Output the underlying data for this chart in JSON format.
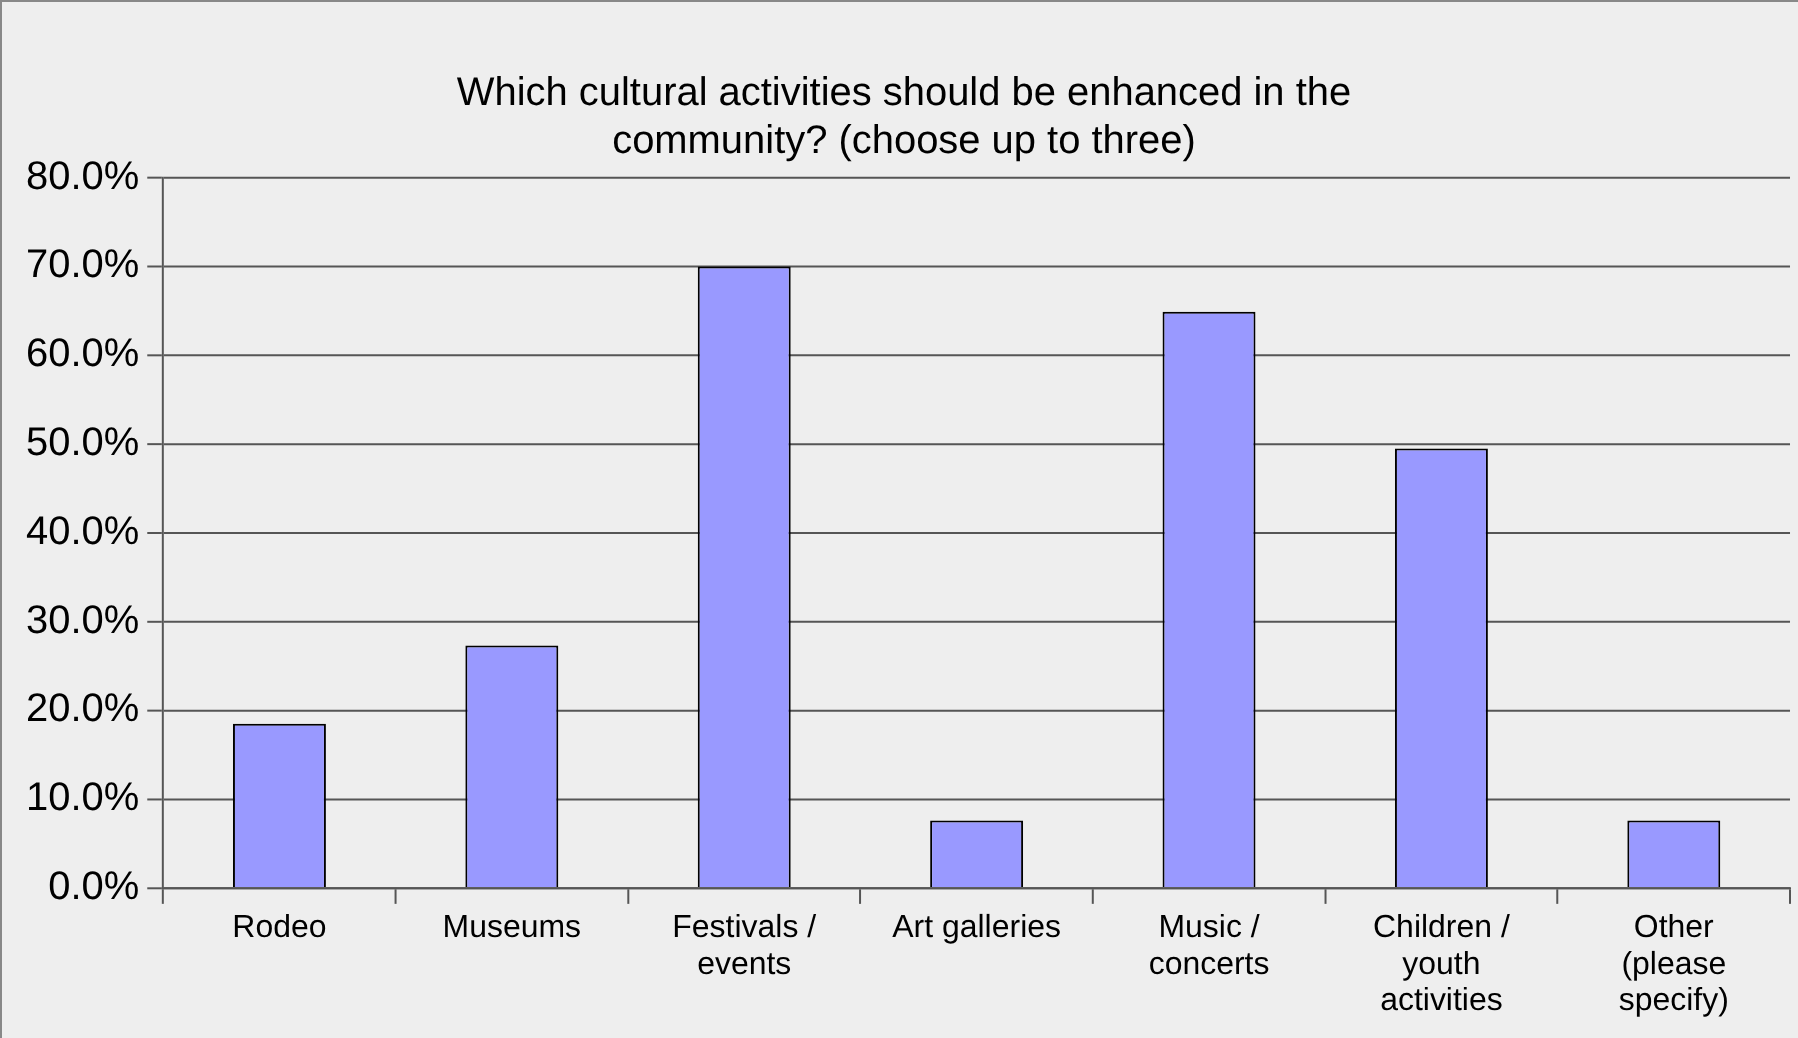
{
  "chart_data": {
    "type": "bar",
    "title": "Which cultural activities should be enhanced in the community? (choose up to three)",
    "categories": [
      "Rodeo",
      "Museums",
      "Festivals / events",
      "Art galleries",
      "Music / concerts",
      "Children / youth activities",
      "Other (please specify)"
    ],
    "values": [
      18.5,
      27.3,
      70.0,
      7.6,
      64.9,
      49.5,
      7.6
    ],
    "color": "#9999ff",
    "ylim": [
      0,
      80
    ],
    "yticks": [
      {
        "value": 0,
        "label": "0.0%"
      },
      {
        "value": 10,
        "label": "10.0%"
      },
      {
        "value": 20,
        "label": "20.0%"
      },
      {
        "value": 30,
        "label": "30.0%"
      },
      {
        "value": 40,
        "label": "40.0%"
      },
      {
        "value": 50,
        "label": "50.0%"
      },
      {
        "value": 60,
        "label": "60.0%"
      },
      {
        "value": 70,
        "label": "70.0%"
      },
      {
        "value": 80,
        "label": "80.0%"
      }
    ],
    "grid": "y",
    "legend": false
  }
}
